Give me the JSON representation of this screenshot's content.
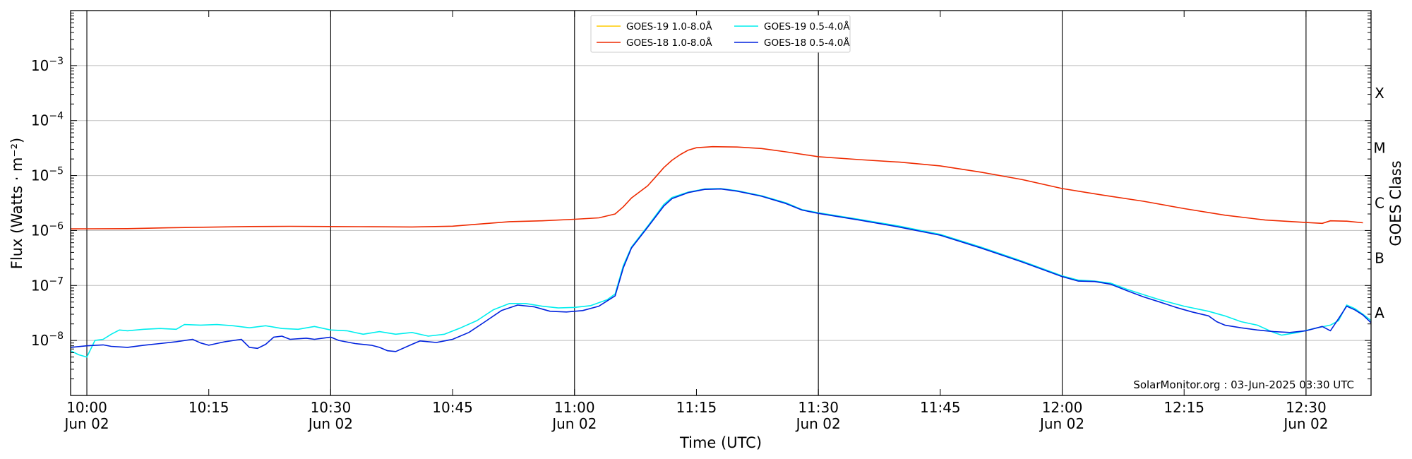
{
  "chart_data": {
    "type": "line",
    "title": "",
    "xlabel": "Time (UTC)",
    "ylabel": "Flux (Watts · m⁻²)",
    "y2label": "GOES Class",
    "yscale": "log",
    "ylim": [
      1e-09,
      0.01
    ],
    "xlim": [
      "2025-06-02 09:58",
      "2025-06-02 12:38"
    ],
    "grid": "horizontal",
    "legend": "top-center",
    "footer": "SolarMonitor.org : 03-Jun-2025 03:30 UTC",
    "x_ticks": [
      {
        "time": "10:00",
        "line1": "10:00",
        "line2": "Jun 02"
      },
      {
        "time": "10:15",
        "line1": "10:15",
        "line2": ""
      },
      {
        "time": "10:30",
        "line1": "10:30",
        "line2": "Jun 02"
      },
      {
        "time": "10:45",
        "line1": "10:45",
        "line2": ""
      },
      {
        "time": "11:00",
        "line1": "11:00",
        "line2": "Jun 02"
      },
      {
        "time": "11:15",
        "line1": "11:15",
        "line2": ""
      },
      {
        "time": "11:30",
        "line1": "11:30",
        "line2": "Jun 02"
      },
      {
        "time": "11:45",
        "line1": "11:45",
        "line2": ""
      },
      {
        "time": "12:00",
        "line1": "12:00",
        "line2": "Jun 02"
      },
      {
        "time": "12:15",
        "line1": "12:15",
        "line2": ""
      },
      {
        "time": "12:30",
        "line1": "12:30",
        "line2": "Jun 02"
      }
    ],
    "vertical_lines": [
      "10:00",
      "10:30",
      "11:00",
      "11:30",
      "12:00",
      "12:30"
    ],
    "y_ticks": [
      {
        "value": 1e-08,
        "base": "10",
        "exp": "−8"
      },
      {
        "value": 1e-07,
        "base": "10",
        "exp": "−7"
      },
      {
        "value": 1e-06,
        "base": "10",
        "exp": "−6"
      },
      {
        "value": 1e-05,
        "base": "10",
        "exp": "−5"
      },
      {
        "value": 0.0001,
        "base": "10",
        "exp": "−4"
      },
      {
        "value": 0.001,
        "base": "10",
        "exp": "−3"
      }
    ],
    "goes_classes": [
      {
        "label": "A",
        "value": 3.16e-08
      },
      {
        "label": "B",
        "value": 3.16e-07
      },
      {
        "label": "C",
        "value": 3.16e-06
      },
      {
        "label": "M",
        "value": 3.16e-05
      },
      {
        "label": "X",
        "value": 0.000316
      }
    ],
    "series": [
      {
        "name": "GOES-19 1.0-8.0Å",
        "color": "#ffcc00",
        "points": []
      },
      {
        "name": "GOES-18 1.0-8.0Å",
        "color": "#ee2a00",
        "points": [
          [
            "09:58",
            1.07e-06
          ],
          [
            "10:05",
            1.08e-06
          ],
          [
            "10:10",
            1.12e-06
          ],
          [
            "10:15",
            1.15e-06
          ],
          [
            "10:20",
            1.18e-06
          ],
          [
            "10:25",
            1.19e-06
          ],
          [
            "10:30",
            1.18e-06
          ],
          [
            "10:35",
            1.17e-06
          ],
          [
            "10:40",
            1.16e-06
          ],
          [
            "10:45",
            1.2e-06
          ],
          [
            "10:48",
            1.3e-06
          ],
          [
            "10:52",
            1.45e-06
          ],
          [
            "10:56",
            1.5e-06
          ],
          [
            "11:00",
            1.6e-06
          ],
          [
            "11:03",
            1.7e-06
          ],
          [
            "11:05",
            2e-06
          ],
          [
            "11:06",
            2.7e-06
          ],
          [
            "11:07",
            3.9e-06
          ],
          [
            "11:09",
            6.5e-06
          ],
          [
            "11:10",
            9.5e-06
          ],
          [
            "11:11",
            1.4e-05
          ],
          [
            "11:12",
            1.9e-05
          ],
          [
            "11:13",
            2.4e-05
          ],
          [
            "11:14",
            2.9e-05
          ],
          [
            "11:15",
            3.2e-05
          ],
          [
            "11:17",
            3.35e-05
          ],
          [
            "11:20",
            3.3e-05
          ],
          [
            "11:23",
            3.1e-05
          ],
          [
            "11:26",
            2.7e-05
          ],
          [
            "11:30",
            2.2e-05
          ],
          [
            "11:35",
            1.95e-05
          ],
          [
            "11:40",
            1.75e-05
          ],
          [
            "11:45",
            1.5e-05
          ],
          [
            "11:50",
            1.15e-05
          ],
          [
            "11:55",
            8.5e-06
          ],
          [
            "12:00",
            5.8e-06
          ],
          [
            "12:05",
            4.4e-06
          ],
          [
            "12:10",
            3.4e-06
          ],
          [
            "12:15",
            2.5e-06
          ],
          [
            "12:20",
            1.9e-06
          ],
          [
            "12:25",
            1.55e-06
          ],
          [
            "12:30",
            1.4e-06
          ],
          [
            "12:32",
            1.35e-06
          ],
          [
            "12:33",
            1.5e-06
          ],
          [
            "12:35",
            1.48e-06
          ],
          [
            "12:37",
            1.38e-06
          ]
        ]
      },
      {
        "name": "GOES-19 0.5-4.0Å",
        "color": "#00eeee",
        "points": [
          [
            "09:58",
            6.5e-09
          ],
          [
            "09:59",
            5.5e-09
          ],
          [
            "10:00",
            5e-09
          ],
          [
            "10:01",
            1e-08
          ],
          [
            "10:02",
            1.05e-08
          ],
          [
            "10:03",
            1.3e-08
          ],
          [
            "10:04",
            1.55e-08
          ],
          [
            "10:05",
            1.5e-08
          ],
          [
            "10:07",
            1.6e-08
          ],
          [
            "10:09",
            1.65e-08
          ],
          [
            "10:11",
            1.6e-08
          ],
          [
            "10:12",
            1.95e-08
          ],
          [
            "10:14",
            1.9e-08
          ],
          [
            "10:16",
            1.95e-08
          ],
          [
            "10:18",
            1.85e-08
          ],
          [
            "10:20",
            1.7e-08
          ],
          [
            "10:22",
            1.85e-08
          ],
          [
            "10:24",
            1.65e-08
          ],
          [
            "10:26",
            1.6e-08
          ],
          [
            "10:28",
            1.8e-08
          ],
          [
            "10:30",
            1.55e-08
          ],
          [
            "10:32",
            1.5e-08
          ],
          [
            "10:34",
            1.3e-08
          ],
          [
            "10:36",
            1.45e-08
          ],
          [
            "10:38",
            1.3e-08
          ],
          [
            "10:40",
            1.4e-08
          ],
          [
            "10:42",
            1.2e-08
          ],
          [
            "10:44",
            1.3e-08
          ],
          [
            "10:46",
            1.7e-08
          ],
          [
            "10:48",
            2.3e-08
          ],
          [
            "10:50",
            3.6e-08
          ],
          [
            "10:52",
            4.7e-08
          ],
          [
            "10:54",
            4.7e-08
          ],
          [
            "10:56",
            4.2e-08
          ],
          [
            "10:58",
            3.9e-08
          ],
          [
            "11:00",
            4e-08
          ],
          [
            "11:02",
            4.3e-08
          ],
          [
            "11:04",
            5.5e-08
          ],
          [
            "11:05",
            7e-08
          ],
          [
            "11:06",
            2.3e-07
          ],
          [
            "11:07",
            5e-07
          ],
          [
            "11:09",
            1.2e-06
          ],
          [
            "11:11",
            3e-06
          ],
          [
            "11:12",
            4e-06
          ],
          [
            "11:14",
            5e-06
          ],
          [
            "11:16",
            5.7e-06
          ],
          [
            "11:18",
            5.8e-06
          ],
          [
            "11:20",
            5.3e-06
          ],
          [
            "11:23",
            4.3e-06
          ],
          [
            "11:26",
            3.2e-06
          ],
          [
            "11:28",
            2.4e-06
          ],
          [
            "11:30",
            2.1e-06
          ],
          [
            "11:35",
            1.6e-06
          ],
          [
            "11:40",
            1.2e-06
          ],
          [
            "11:45",
            8.5e-07
          ],
          [
            "11:50",
            5e-07
          ],
          [
            "11:55",
            2.8e-07
          ],
          [
            "12:00",
            1.5e-07
          ],
          [
            "12:02",
            1.25e-07
          ],
          [
            "12:04",
            1.2e-07
          ],
          [
            "12:06",
            1.1e-07
          ],
          [
            "12:08",
            8.5e-08
          ],
          [
            "12:10",
            6.8e-08
          ],
          [
            "12:12",
            5.5e-08
          ],
          [
            "12:15",
            4.2e-08
          ],
          [
            "12:18",
            3.4e-08
          ],
          [
            "12:20",
            2.8e-08
          ],
          [
            "12:22",
            2.2e-08
          ],
          [
            "12:24",
            1.9e-08
          ],
          [
            "12:26",
            1.4e-08
          ],
          [
            "12:27",
            1.25e-08
          ],
          [
            "12:29",
            1.4e-08
          ],
          [
            "12:31",
            1.65e-08
          ],
          [
            "12:33",
            1.9e-08
          ],
          [
            "12:34",
            2.3e-08
          ],
          [
            "12:35",
            4.4e-08
          ],
          [
            "12:36",
            3.8e-08
          ],
          [
            "12:37",
            3e-08
          ],
          [
            "12:38",
            2.3e-08
          ]
        ]
      },
      {
        "name": "GOES-18 0.5-4.0Å",
        "color": "#0022dd",
        "points": [
          [
            "09:58",
            7.5e-09
          ],
          [
            "10:00",
            8e-09
          ],
          [
            "10:02",
            8.3e-09
          ],
          [
            "10:03",
            7.8e-09
          ],
          [
            "10:05",
            7.5e-09
          ],
          [
            "10:07",
            8.2e-09
          ],
          [
            "10:09",
            8.8e-09
          ],
          [
            "10:11",
            9.5e-09
          ],
          [
            "10:13",
            1.05e-08
          ],
          [
            "10:14",
            9e-09
          ],
          [
            "10:15",
            8.2e-09
          ],
          [
            "10:17",
            9.5e-09
          ],
          [
            "10:19",
            1.05e-08
          ],
          [
            "10:20",
            7.5e-09
          ],
          [
            "10:21",
            7.2e-09
          ],
          [
            "10:22",
            8.5e-09
          ],
          [
            "10:23",
            1.15e-08
          ],
          [
            "10:24",
            1.2e-08
          ],
          [
            "10:25",
            1.05e-08
          ],
          [
            "10:27",
            1.1e-08
          ],
          [
            "10:28",
            1.05e-08
          ],
          [
            "10:30",
            1.15e-08
          ],
          [
            "10:31",
            1e-08
          ],
          [
            "10:33",
            8.8e-09
          ],
          [
            "10:35",
            8.2e-09
          ],
          [
            "10:36",
            7.5e-09
          ],
          [
            "10:37",
            6.5e-09
          ],
          [
            "10:38",
            6.3e-09
          ],
          [
            "10:40",
            8.5e-09
          ],
          [
            "10:41",
            9.8e-09
          ],
          [
            "10:43",
            9.2e-09
          ],
          [
            "10:45",
            1.05e-08
          ],
          [
            "10:47",
            1.4e-08
          ],
          [
            "10:49",
            2.2e-08
          ],
          [
            "10:51",
            3.5e-08
          ],
          [
            "10:53",
            4.4e-08
          ],
          [
            "10:55",
            4.1e-08
          ],
          [
            "10:57",
            3.4e-08
          ],
          [
            "10:59",
            3.3e-08
          ],
          [
            "11:01",
            3.5e-08
          ],
          [
            "11:03",
            4.2e-08
          ],
          [
            "11:05",
            6.5e-08
          ],
          [
            "11:06",
            2.1e-07
          ],
          [
            "11:07",
            4.8e-07
          ],
          [
            "11:09",
            1.15e-06
          ],
          [
            "11:11",
            2.8e-06
          ],
          [
            "11:12",
            3.8e-06
          ],
          [
            "11:14",
            4.9e-06
          ],
          [
            "11:16",
            5.6e-06
          ],
          [
            "11:18",
            5.7e-06
          ],
          [
            "11:20",
            5.2e-06
          ],
          [
            "11:23",
            4.2e-06
          ],
          [
            "11:26",
            3.1e-06
          ],
          [
            "11:28",
            2.35e-06
          ],
          [
            "11:30",
            2.05e-06
          ],
          [
            "11:35",
            1.55e-06
          ],
          [
            "11:40",
            1.15e-06
          ],
          [
            "11:45",
            8.2e-07
          ],
          [
            "11:50",
            4.8e-07
          ],
          [
            "11:55",
            2.7e-07
          ],
          [
            "12:00",
            1.45e-07
          ],
          [
            "12:02",
            1.2e-07
          ],
          [
            "12:04",
            1.18e-07
          ],
          [
            "12:06",
            1.05e-07
          ],
          [
            "12:08",
            8e-08
          ],
          [
            "12:10",
            6.2e-08
          ],
          [
            "12:12",
            5e-08
          ],
          [
            "12:14",
            4e-08
          ],
          [
            "12:16",
            3.3e-08
          ],
          [
            "12:18",
            2.8e-08
          ],
          [
            "12:19",
            2.2e-08
          ],
          [
            "12:20",
            1.9e-08
          ],
          [
            "12:22",
            1.7e-08
          ],
          [
            "12:24",
            1.55e-08
          ],
          [
            "12:26",
            1.45e-08
          ],
          [
            "12:28",
            1.4e-08
          ],
          [
            "12:30",
            1.5e-08
          ],
          [
            "12:32",
            1.8e-08
          ],
          [
            "12:33",
            1.5e-08
          ],
          [
            "12:34",
            2.5e-08
          ],
          [
            "12:35",
            4.2e-08
          ],
          [
            "12:36",
            3.6e-08
          ],
          [
            "12:37",
            2.9e-08
          ],
          [
            "12:38",
            2.1e-08
          ]
        ]
      }
    ]
  }
}
